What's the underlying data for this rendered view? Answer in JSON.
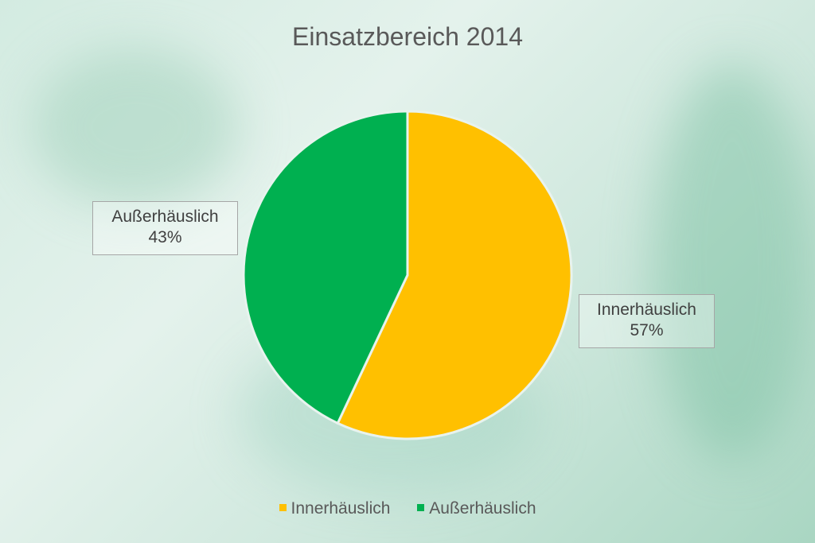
{
  "chart_data": {
    "type": "pie",
    "title": "Einsatzbereich 2014",
    "slices": [
      {
        "label": "Innerhäuslich",
        "value": 57,
        "value_label": "57%",
        "color": "#FFC000"
      },
      {
        "label": "Außerhäuslich",
        "value": 43,
        "value_label": "43%",
        "color": "#00B050"
      }
    ],
    "legend_position": "bottom"
  }
}
